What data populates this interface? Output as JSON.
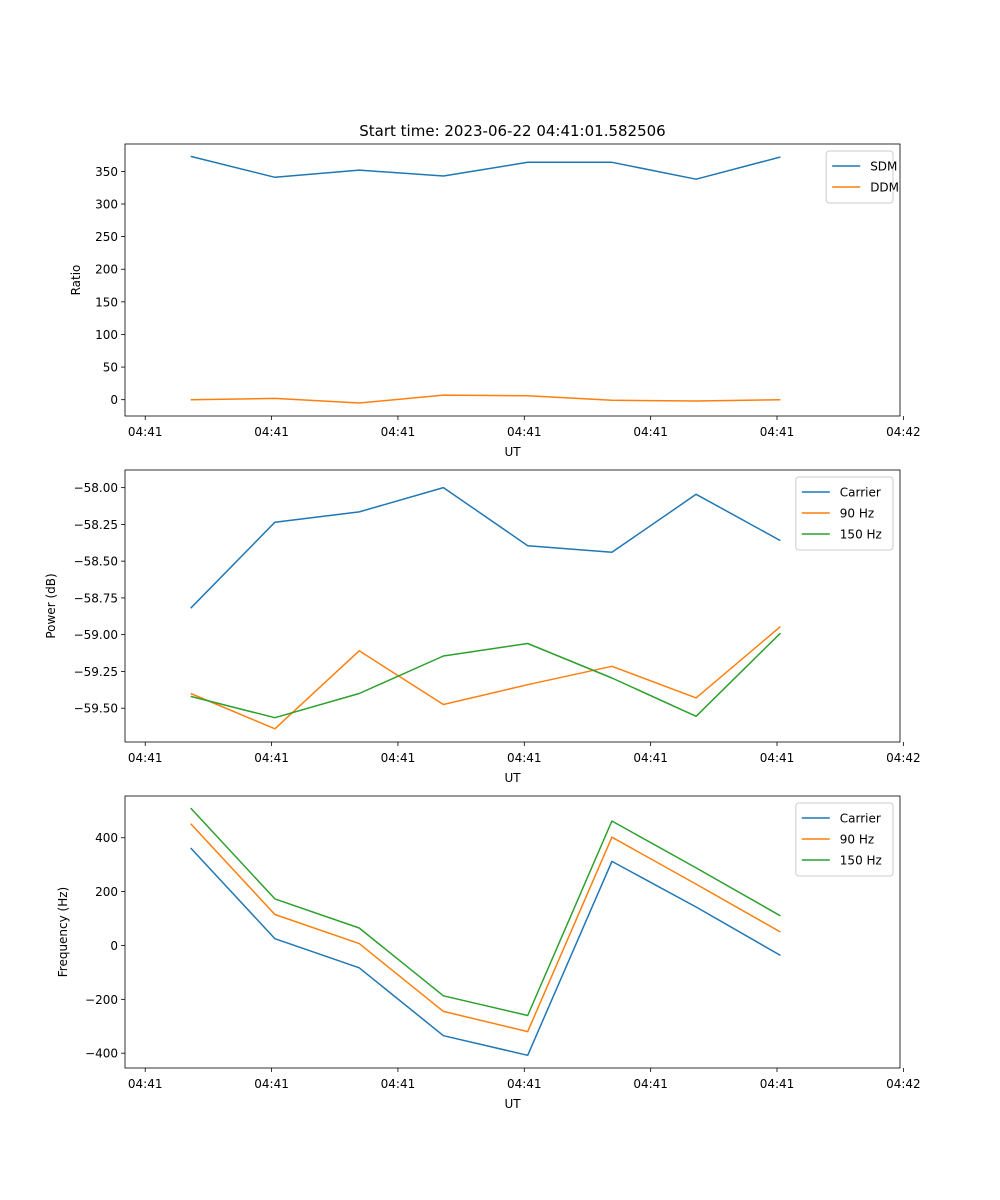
{
  "figure_title": "Start time: 2023-06-22 04:41:01.582506",
  "colors": {
    "blue": "#1f77b4",
    "orange": "#ff7f0e",
    "green": "#2ca02c"
  },
  "chart_data": [
    {
      "type": "line",
      "xlabel": "UT",
      "ylabel": "Ratio",
      "x_tick_labels": [
        "04:41",
        "04:41",
        "04:41",
        "04:41",
        "04:41",
        "04:41",
        "04:42"
      ],
      "x": [
        1,
        2,
        3,
        4,
        5,
        6,
        7,
        8
      ],
      "xlim": [
        0.22,
        9.42
      ],
      "y_ticks": [
        0,
        50,
        100,
        150,
        200,
        250,
        300,
        350
      ],
      "ylim": [
        -25,
        392
      ],
      "legend_position": "upper right",
      "series": [
        {
          "name": "SDM",
          "color": "#1f77b4",
          "values": [
            373,
            341,
            352,
            343,
            364,
            364,
            338,
            372
          ]
        },
        {
          "name": "DDM",
          "color": "#ff7f0e",
          "values": [
            0,
            2,
            -5,
            7,
            6,
            -1,
            -2,
            0
          ]
        }
      ]
    },
    {
      "type": "line",
      "xlabel": "UT",
      "ylabel": "Power (dB)",
      "x_tick_labels": [
        "04:41",
        "04:41",
        "04:41",
        "04:41",
        "04:41",
        "04:41",
        "04:42"
      ],
      "x": [
        1,
        2,
        3,
        4,
        5,
        6,
        7,
        8
      ],
      "xlim": [
        0.22,
        9.42
      ],
      "y_ticks": [
        -59.5,
        -59.25,
        -59.0,
        -58.75,
        -58.5,
        -58.25,
        -58.0
      ],
      "y_tick_labels": [
        "−59.50",
        "−59.25",
        "−59.00",
        "−58.75",
        "−58.50",
        "−58.25",
        "−58.00"
      ],
      "ylim": [
        -59.73,
        -57.88
      ],
      "legend_position": "upper right",
      "series": [
        {
          "name": "Carrier",
          "color": "#1f77b4",
          "values": [
            -58.82,
            -58.235,
            -58.165,
            -58.0,
            -58.395,
            -58.44,
            -58.045,
            -58.36
          ]
        },
        {
          "name": "90 Hz",
          "color": "#ff7f0e",
          "values": [
            -59.4,
            -59.64,
            -59.11,
            -59.475,
            -59.34,
            -59.215,
            -59.43,
            -58.945
          ]
        },
        {
          "name": "150 Hz",
          "color": "#2ca02c",
          "values": [
            -59.42,
            -59.565,
            -59.4,
            -59.145,
            -59.06,
            -59.295,
            -59.555,
            -58.99
          ]
        }
      ]
    },
    {
      "type": "line",
      "xlabel": "UT",
      "ylabel": "Frequency (Hz)",
      "x_tick_labels": [
        "04:41",
        "04:41",
        "04:41",
        "04:41",
        "04:41",
        "04:41",
        "04:42"
      ],
      "x": [
        1,
        2,
        3,
        4,
        5,
        6,
        7,
        8
      ],
      "xlim": [
        0.22,
        9.42
      ],
      "y_ticks": [
        -400,
        -200,
        0,
        200,
        400
      ],
      "y_tick_labels": [
        "−400",
        "−200",
        "0",
        "200",
        "400"
      ],
      "ylim": [
        -455,
        555
      ],
      "legend_position": "upper right",
      "series": [
        {
          "name": "Carrier",
          "color": "#1f77b4",
          "values": [
            362,
            25,
            -83,
            -335,
            -408,
            312,
            143,
            -37
          ]
        },
        {
          "name": "90 Hz",
          "color": "#ff7f0e",
          "values": [
            452,
            115,
            7,
            -245,
            -320,
            402,
            228,
            50
          ]
        },
        {
          "name": "150 Hz",
          "color": "#2ca02c",
          "values": [
            510,
            173,
            65,
            -187,
            -260,
            462,
            288,
            110
          ]
        }
      ]
    }
  ]
}
